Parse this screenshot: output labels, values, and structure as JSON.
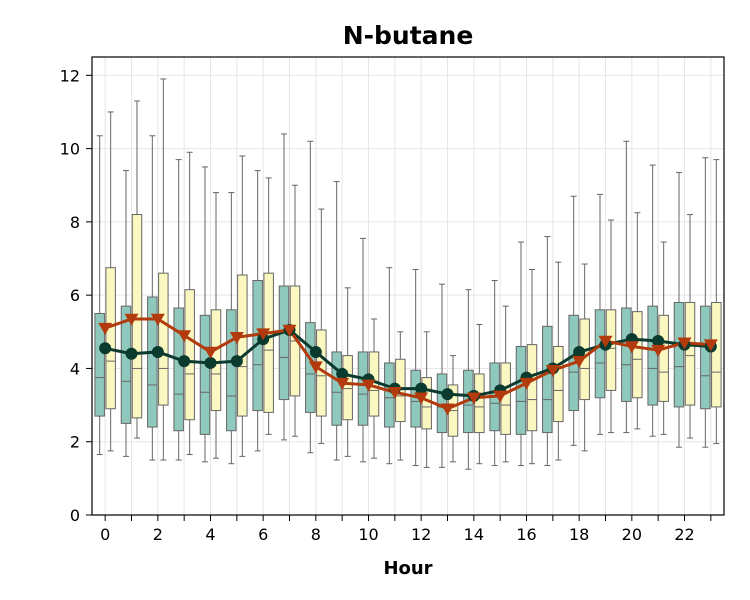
{
  "chart_data": {
    "type": "box",
    "title": "N-butane",
    "xlabel": "Hour",
    "ylabel": "",
    "xlim": [
      -0.5,
      23.5
    ],
    "ylim": [
      0,
      12.5
    ],
    "x_ticks": [
      0,
      2,
      4,
      6,
      8,
      10,
      12,
      14,
      16,
      18,
      20,
      22
    ],
    "y_ticks": [
      0,
      2,
      4,
      6,
      8,
      10,
      12
    ],
    "grid": true,
    "hours": [
      0,
      1,
      2,
      3,
      4,
      5,
      6,
      7,
      8,
      9,
      10,
      11,
      12,
      13,
      14,
      15,
      16,
      17,
      18,
      19,
      20,
      21,
      22,
      23
    ],
    "colors": {
      "box_a": "#8fc8bc",
      "box_b": "#fbf7c0",
      "box_edge": "#666666",
      "line_a": "#0b3a2e",
      "line_b": "#b23a0c",
      "grid": "#e6e6e6"
    },
    "box_series": [
      {
        "whisker_low": [
          1.65,
          1.6,
          1.5,
          1.5,
          1.45,
          1.4,
          1.75,
          2.05,
          1.7,
          1.5,
          1.45,
          1.4,
          1.35,
          1.3,
          1.25,
          1.35,
          1.35,
          1.35,
          1.9,
          2.2,
          2.25,
          2.15,
          1.85,
          1.85
        ],
        "q1": [
          2.7,
          2.5,
          2.4,
          2.3,
          2.2,
          2.3,
          2.85,
          3.15,
          2.8,
          2.45,
          2.45,
          2.4,
          2.4,
          2.25,
          2.25,
          2.3,
          2.2,
          2.25,
          2.85,
          3.2,
          3.1,
          3.0,
          2.95,
          2.9
        ],
        "median": [
          3.75,
          3.65,
          3.55,
          3.3,
          3.35,
          3.25,
          4.1,
          4.3,
          3.85,
          3.35,
          3.3,
          3.2,
          3.1,
          2.95,
          3.0,
          3.05,
          3.1,
          3.15,
          3.9,
          4.15,
          4.1,
          4.0,
          4.05,
          3.8
        ],
        "q3": [
          5.5,
          5.7,
          5.95,
          5.65,
          5.45,
          5.6,
          6.4,
          6.25,
          5.25,
          4.45,
          4.45,
          4.15,
          3.95,
          3.85,
          3.95,
          4.15,
          4.6,
          5.15,
          5.45,
          5.6,
          5.65,
          5.7,
          5.8,
          5.7
        ],
        "whisker_high": [
          10.35,
          9.4,
          10.35,
          9.7,
          9.5,
          8.8,
          9.4,
          10.4,
          10.2,
          9.1,
          7.55,
          6.75,
          6.7,
          6.3,
          6.15,
          6.4,
          7.45,
          7.6,
          8.7,
          8.75,
          10.2,
          9.55,
          9.35,
          9.75
        ],
        "mean": [
          4.55,
          4.4,
          4.45,
          4.2,
          4.15,
          4.2,
          4.8,
          5.05,
          4.45,
          3.85,
          3.7,
          3.45,
          3.45,
          3.3,
          3.25,
          3.4,
          3.75,
          4.0,
          4.45,
          4.65,
          4.8,
          4.75,
          4.65,
          4.6
        ]
      },
      {
        "whisker_low": [
          1.75,
          2.1,
          1.5,
          1.65,
          1.55,
          1.6,
          2.2,
          2.15,
          1.95,
          1.6,
          1.55,
          1.5,
          1.3,
          1.45,
          1.4,
          1.45,
          1.4,
          1.5,
          1.75,
          2.25,
          2.35,
          2.2,
          2.1,
          1.95
        ],
        "q1": [
          2.9,
          2.65,
          3.0,
          2.6,
          2.85,
          2.7,
          2.8,
          3.25,
          2.7,
          2.6,
          2.7,
          2.55,
          2.35,
          2.15,
          2.25,
          2.2,
          2.3,
          2.55,
          3.15,
          3.4,
          3.2,
          3.1,
          3.0,
          2.95
        ],
        "median": [
          4.2,
          4.0,
          4.0,
          3.85,
          3.85,
          4.05,
          4.5,
          4.75,
          3.8,
          3.45,
          3.4,
          3.25,
          2.95,
          2.85,
          2.95,
          3.0,
          3.15,
          3.4,
          4.0,
          4.55,
          4.25,
          3.9,
          4.35,
          3.9
        ],
        "q3": [
          6.75,
          8.2,
          6.6,
          6.15,
          5.6,
          6.55,
          6.6,
          6.25,
          5.05,
          4.35,
          4.45,
          4.25,
          3.75,
          3.55,
          3.85,
          4.15,
          4.65,
          4.6,
          5.35,
          5.6,
          5.55,
          5.45,
          5.8,
          5.8
        ],
        "whisker_high": [
          11.0,
          11.3,
          11.9,
          9.9,
          8.8,
          9.8,
          9.2,
          9.0,
          8.35,
          6.2,
          5.35,
          5.0,
          5.0,
          4.35,
          5.2,
          5.7,
          6.7,
          6.9,
          6.85,
          8.05,
          8.25,
          7.45,
          8.2,
          9.7
        ],
        "mean": [
          5.1,
          5.35,
          5.35,
          4.9,
          4.45,
          4.85,
          4.95,
          5.05,
          4.05,
          3.6,
          3.55,
          3.35,
          3.2,
          2.9,
          3.2,
          3.25,
          3.6,
          3.95,
          4.2,
          4.75,
          4.6,
          4.5,
          4.7,
          4.65
        ]
      }
    ]
  }
}
